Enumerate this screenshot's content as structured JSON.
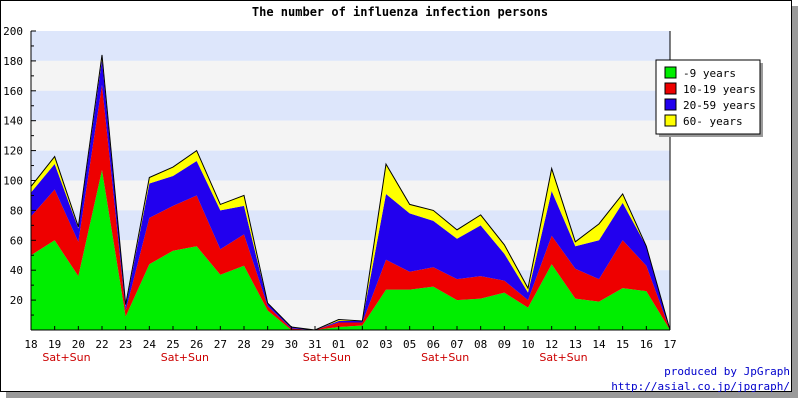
{
  "chart_data": {
    "type": "area",
    "stacked": true,
    "title": "The number of influenza infection persons",
    "categories": [
      "18",
      "19",
      "20",
      "22",
      "23",
      "24",
      "25",
      "26",
      "27",
      "28",
      "29",
      "30",
      "31",
      "01",
      "02",
      "03",
      "05",
      "06",
      "07",
      "08",
      "09",
      "10",
      "12",
      "13",
      "14",
      "15",
      "16",
      "17"
    ],
    "weekend_marks": [
      {
        "index": 1,
        "label": "Sat+Sun"
      },
      {
        "index": 6,
        "label": "Sat+Sun"
      },
      {
        "index": 12,
        "label": "Sat+Sun"
      },
      {
        "index": 17,
        "label": "Sat+Sun"
      },
      {
        "index": 22,
        "label": "Sat+Sun"
      }
    ],
    "ylim": [
      0,
      200
    ],
    "yticks": [
      20,
      40,
      60,
      80,
      100,
      120,
      140,
      160,
      180,
      200
    ],
    "legend_position": "top-right",
    "background_bands": [
      "#dde6fb",
      "#f4f4f4"
    ],
    "series": [
      {
        "name": "-9 years",
        "color": "#00ee00",
        "values": [
          50,
          60,
          36,
          107,
          9,
          44,
          53,
          56,
          37,
          43,
          13,
          0,
          0,
          2,
          3,
          27,
          27,
          29,
          20,
          21,
          25,
          15,
          44,
          21,
          19,
          28,
          26,
          0
        ]
      },
      {
        "name": "10-19 years",
        "color": "#ee0000",
        "values": [
          26,
          34,
          23,
          57,
          4,
          31,
          30,
          34,
          17,
          21,
          3,
          1,
          0,
          3,
          2,
          20,
          12,
          13,
          14,
          15,
          8,
          5,
          19,
          20,
          15,
          32,
          17,
          0
        ]
      },
      {
        "name": "20-59 years",
        "color": "#2200ee",
        "values": [
          16,
          17,
          9,
          17,
          3,
          23,
          20,
          23,
          26,
          19,
          2,
          1,
          0,
          1,
          1,
          44,
          39,
          31,
          27,
          34,
          18,
          5,
          30,
          15,
          26,
          25,
          13,
          0
        ]
      },
      {
        "name": "60- years",
        "color": "#ffff00",
        "values": [
          4,
          5,
          1,
          3,
          1,
          4,
          6,
          7,
          4,
          7,
          0,
          0,
          0,
          1,
          0,
          20,
          6,
          7,
          6,
          7,
          6,
          3,
          15,
          3,
          11,
          6,
          0,
          0
        ]
      }
    ],
    "series_cumulative_tops_note": "",
    "credit_line1": "produced by JpGraph",
    "credit_line2": "http://asial.co.jp/jpgraph/"
  }
}
